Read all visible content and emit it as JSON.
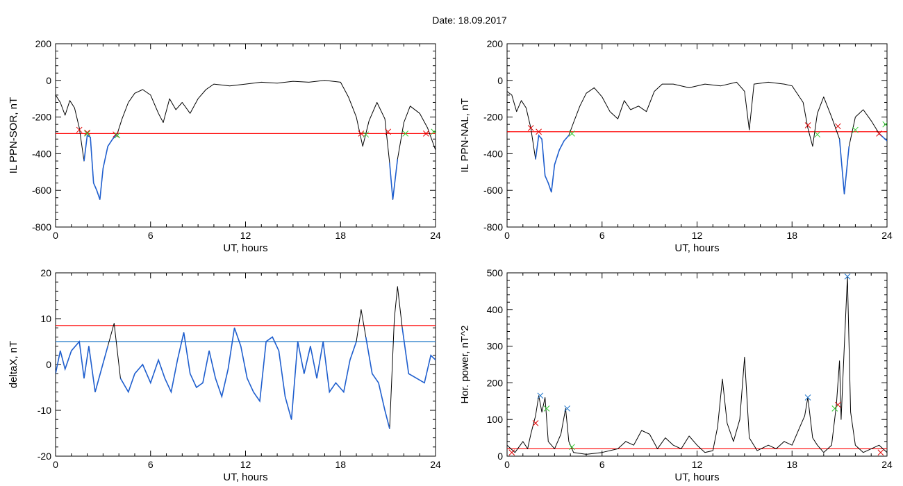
{
  "figure": {
    "title": "Date:  18.09.2017"
  },
  "colors": {
    "trace": "#000000",
    "event": "#1f5fcf",
    "threshold_red": "#ff0000",
    "threshold_blue": "#1f78c8",
    "mark_red": "#e00000",
    "mark_green": "#33cc33",
    "mark_blue": "#2277cc"
  },
  "chart_data": [
    {
      "type": "line",
      "xlabel": "UT, hours",
      "ylabel": "IL PPN-SOR, nT",
      "xlim": [
        0,
        24
      ],
      "ylim": [
        -800,
        200
      ],
      "xticks": [
        0,
        6,
        12,
        18,
        24
      ],
      "yticks": [
        -800,
        -600,
        -400,
        -200,
        0,
        200
      ],
      "series": [
        {
          "role": "IL",
          "values": [
            [
              0,
              -80
            ],
            [
              0.3,
              -120
            ],
            [
              0.6,
              -190
            ],
            [
              0.9,
              -110
            ],
            [
              1.2,
              -150
            ],
            [
              1.5,
              -260
            ],
            [
              1.8,
              -440
            ],
            [
              2.0,
              -300
            ],
            [
              2.2,
              -310
            ],
            [
              2.4,
              -560
            ],
            [
              2.6,
              -600
            ],
            [
              2.8,
              -650
            ],
            [
              3.0,
              -480
            ],
            [
              3.3,
              -360
            ],
            [
              3.6,
              -320
            ],
            [
              3.9,
              -290
            ],
            [
              4.2,
              -210
            ],
            [
              4.6,
              -120
            ],
            [
              5.0,
              -70
            ],
            [
              5.5,
              -50
            ],
            [
              6.0,
              -80
            ],
            [
              6.5,
              -180
            ],
            [
              6.8,
              -230
            ],
            [
              7.2,
              -100
            ],
            [
              7.6,
              -160
            ],
            [
              8.0,
              -120
            ],
            [
              8.5,
              -180
            ],
            [
              9.0,
              -100
            ],
            [
              9.5,
              -50
            ],
            [
              10.0,
              -20
            ],
            [
              11.0,
              -30
            ],
            [
              12.0,
              -20
            ],
            [
              13.0,
              -10
            ],
            [
              14.0,
              -15
            ],
            [
              15.0,
              -5
            ],
            [
              16.0,
              -10
            ],
            [
              17.0,
              0
            ],
            [
              18.0,
              -10
            ],
            [
              18.5,
              -90
            ],
            [
              19.0,
              -200
            ],
            [
              19.4,
              -360
            ],
            [
              19.8,
              -220
            ],
            [
              20.3,
              -120
            ],
            [
              20.8,
              -210
            ],
            [
              21.1,
              -450
            ],
            [
              21.3,
              -650
            ],
            [
              21.6,
              -430
            ],
            [
              22.0,
              -230
            ],
            [
              22.4,
              -140
            ],
            [
              23.0,
              -180
            ],
            [
              23.5,
              -260
            ],
            [
              24.0,
              -380
            ]
          ]
        }
      ],
      "threshold_red": -290,
      "red_marks": [
        [
          1.5,
          -270
        ],
        [
          2.0,
          -285
        ],
        [
          3.8,
          -295
        ],
        [
          19.3,
          -290
        ],
        [
          21.0,
          -280
        ],
        [
          23.4,
          -290
        ]
      ],
      "green_marks": [
        [
          2.0,
          -290
        ],
        [
          3.9,
          -300
        ],
        [
          19.6,
          -295
        ],
        [
          22.1,
          -290
        ],
        [
          23.9,
          -280
        ]
      ]
    },
    {
      "type": "line",
      "xlabel": "UT, hours",
      "ylabel": "IL PPN-NAL, nT",
      "xlim": [
        0,
        24
      ],
      "ylim": [
        -800,
        200
      ],
      "xticks": [
        0,
        6,
        12,
        18,
        24
      ],
      "yticks": [
        -800,
        -600,
        -400,
        -200,
        0,
        200
      ],
      "series": [
        {
          "role": "IL",
          "values": [
            [
              0,
              -60
            ],
            [
              0.3,
              -80
            ],
            [
              0.6,
              -170
            ],
            [
              0.9,
              -110
            ],
            [
              1.2,
              -150
            ],
            [
              1.5,
              -260
            ],
            [
              1.8,
              -430
            ],
            [
              2.0,
              -300
            ],
            [
              2.2,
              -320
            ],
            [
              2.4,
              -520
            ],
            [
              2.6,
              -560
            ],
            [
              2.8,
              -610
            ],
            [
              3.0,
              -460
            ],
            [
              3.3,
              -380
            ],
            [
              3.6,
              -330
            ],
            [
              3.9,
              -300
            ],
            [
              4.2,
              -230
            ],
            [
              4.6,
              -140
            ],
            [
              5.0,
              -70
            ],
            [
              5.5,
              -40
            ],
            [
              6.0,
              -90
            ],
            [
              6.5,
              -170
            ],
            [
              7.0,
              -210
            ],
            [
              7.4,
              -110
            ],
            [
              7.8,
              -160
            ],
            [
              8.3,
              -140
            ],
            [
              8.8,
              -170
            ],
            [
              9.3,
              -60
            ],
            [
              9.8,
              -20
            ],
            [
              10.5,
              -20
            ],
            [
              11.5,
              -40
            ],
            [
              12.5,
              -20
            ],
            [
              13.5,
              -30
            ],
            [
              14.5,
              -10
            ],
            [
              15.0,
              -60
            ],
            [
              15.3,
              -270
            ],
            [
              15.6,
              -20
            ],
            [
              16.5,
              -10
            ],
            [
              17.5,
              -20
            ],
            [
              18.0,
              -30
            ],
            [
              18.7,
              -120
            ],
            [
              19.0,
              -260
            ],
            [
              19.3,
              -360
            ],
            [
              19.6,
              -180
            ],
            [
              20.0,
              -90
            ],
            [
              20.5,
              -200
            ],
            [
              21.0,
              -320
            ],
            [
              21.3,
              -620
            ],
            [
              21.6,
              -360
            ],
            [
              22.0,
              -200
            ],
            [
              22.5,
              -160
            ],
            [
              23.0,
              -220
            ],
            [
              23.5,
              -290
            ],
            [
              24.0,
              -330
            ]
          ]
        }
      ],
      "threshold_red": -280,
      "red_marks": [
        [
          1.5,
          -260
        ],
        [
          2.0,
          -280
        ],
        [
          19.0,
          -245
        ],
        [
          20.9,
          -250
        ],
        [
          23.5,
          -290
        ]
      ],
      "green_marks": [
        [
          4.1,
          -290
        ],
        [
          19.6,
          -295
        ],
        [
          22.0,
          -270
        ],
        [
          23.9,
          -240
        ]
      ]
    },
    {
      "type": "line",
      "xlabel": "UT, hours",
      "ylabel": "deltaX, nT",
      "xlim": [
        0,
        24
      ],
      "ylim": [
        -20,
        20
      ],
      "xticks": [
        0,
        6,
        12,
        18,
        24
      ],
      "yticks": [
        -20,
        -10,
        0,
        10,
        20
      ],
      "series": [
        {
          "role": "deltaX",
          "values": [
            [
              0,
              -2
            ],
            [
              0.3,
              3
            ],
            [
              0.6,
              -1
            ],
            [
              1.0,
              3
            ],
            [
              1.5,
              5
            ],
            [
              1.8,
              -3
            ],
            [
              2.1,
              4
            ],
            [
              2.5,
              -6
            ],
            [
              2.9,
              -1
            ],
            [
              3.3,
              4
            ],
            [
              3.7,
              9
            ],
            [
              4.1,
              -3
            ],
            [
              4.6,
              -6
            ],
            [
              5.0,
              -2
            ],
            [
              5.5,
              0
            ],
            [
              6.0,
              -4
            ],
            [
              6.5,
              1
            ],
            [
              6.9,
              -3
            ],
            [
              7.3,
              -6
            ],
            [
              7.7,
              1
            ],
            [
              8.1,
              7
            ],
            [
              8.5,
              -2
            ],
            [
              8.9,
              -5
            ],
            [
              9.3,
              -4
            ],
            [
              9.7,
              3
            ],
            [
              10.1,
              -3
            ],
            [
              10.5,
              -7
            ],
            [
              10.9,
              -1
            ],
            [
              11.3,
              8
            ],
            [
              11.7,
              4
            ],
            [
              12.1,
              -3
            ],
            [
              12.5,
              -6
            ],
            [
              12.9,
              -8
            ],
            [
              13.3,
              5
            ],
            [
              13.7,
              6
            ],
            [
              14.1,
              3
            ],
            [
              14.5,
              -7
            ],
            [
              14.9,
              -12
            ],
            [
              15.3,
              5
            ],
            [
              15.7,
              -2
            ],
            [
              16.1,
              4
            ],
            [
              16.5,
              -3
            ],
            [
              16.9,
              5
            ],
            [
              17.3,
              -6
            ],
            [
              17.7,
              -4
            ],
            [
              18.2,
              -6
            ],
            [
              18.6,
              1
            ],
            [
              19.0,
              5
            ],
            [
              19.3,
              12
            ],
            [
              19.6,
              6
            ],
            [
              20.0,
              -2
            ],
            [
              20.4,
              -4
            ],
            [
              20.8,
              -10
            ],
            [
              21.1,
              -14
            ],
            [
              21.4,
              10
            ],
            [
              21.6,
              17
            ],
            [
              21.9,
              8
            ],
            [
              22.3,
              -2
            ],
            [
              22.8,
              -3
            ],
            [
              23.3,
              -4
            ],
            [
              23.7,
              2
            ],
            [
              24.0,
              1
            ]
          ]
        }
      ],
      "threshold_red": 8.5,
      "threshold_blue": 5
    },
    {
      "type": "line",
      "xlabel": "UT, hours",
      "ylabel": "Hor. power, nT^2",
      "xlim": [
        0,
        24
      ],
      "ylim": [
        0,
        500
      ],
      "xticks": [
        0,
        6,
        12,
        18,
        24
      ],
      "yticks": [
        0,
        100,
        200,
        300,
        400,
        500
      ],
      "series": [
        {
          "role": "power",
          "values": [
            [
              0,
              30
            ],
            [
              0.5,
              10
            ],
            [
              1.0,
              40
            ],
            [
              1.3,
              20
            ],
            [
              1.5,
              60
            ],
            [
              1.8,
              110
            ],
            [
              2.0,
              165
            ],
            [
              2.2,
              120
            ],
            [
              2.4,
              160
            ],
            [
              2.6,
              40
            ],
            [
              3.0,
              20
            ],
            [
              3.4,
              60
            ],
            [
              3.7,
              130
            ],
            [
              3.9,
              40
            ],
            [
              4.2,
              10
            ],
            [
              5.0,
              5
            ],
            [
              6.0,
              10
            ],
            [
              7.0,
              20
            ],
            [
              7.5,
              40
            ],
            [
              8.0,
              30
            ],
            [
              8.5,
              70
            ],
            [
              9.0,
              60
            ],
            [
              9.5,
              20
            ],
            [
              10.0,
              50
            ],
            [
              10.5,
              30
            ],
            [
              11.0,
              20
            ],
            [
              11.5,
              55
            ],
            [
              12.0,
              30
            ],
            [
              12.5,
              10
            ],
            [
              13.0,
              15
            ],
            [
              13.3,
              80
            ],
            [
              13.6,
              210
            ],
            [
              13.9,
              90
            ],
            [
              14.3,
              40
            ],
            [
              14.7,
              100
            ],
            [
              15.0,
              270
            ],
            [
              15.3,
              50
            ],
            [
              15.8,
              15
            ],
            [
              16.5,
              30
            ],
            [
              17.0,
              20
            ],
            [
              17.5,
              40
            ],
            [
              18.0,
              30
            ],
            [
              18.5,
              80
            ],
            [
              18.8,
              110
            ],
            [
              19.0,
              160
            ],
            [
              19.3,
              50
            ],
            [
              19.6,
              30
            ],
            [
              20.0,
              10
            ],
            [
              20.5,
              30
            ],
            [
              20.8,
              140
            ],
            [
              21.0,
              260
            ],
            [
              21.1,
              100
            ],
            [
              21.3,
              300
            ],
            [
              21.5,
              490
            ],
            [
              21.7,
              120
            ],
            [
              22.0,
              30
            ],
            [
              22.5,
              10
            ],
            [
              23.0,
              20
            ],
            [
              23.5,
              30
            ],
            [
              24.0,
              10
            ]
          ]
        }
      ],
      "threshold_red": 20,
      "red_marks": [
        [
          1.8,
          90
        ],
        [
          20.9,
          140
        ],
        [
          0.3,
          10
        ],
        [
          23.6,
          10
        ]
      ],
      "blue_marks": [
        [
          2.1,
          165
        ],
        [
          3.8,
          130
        ],
        [
          19.0,
          160
        ],
        [
          21.5,
          490
        ]
      ],
      "green_marks": [
        [
          2.5,
          130
        ],
        [
          4.1,
          25
        ],
        [
          20.7,
          130
        ]
      ]
    }
  ]
}
